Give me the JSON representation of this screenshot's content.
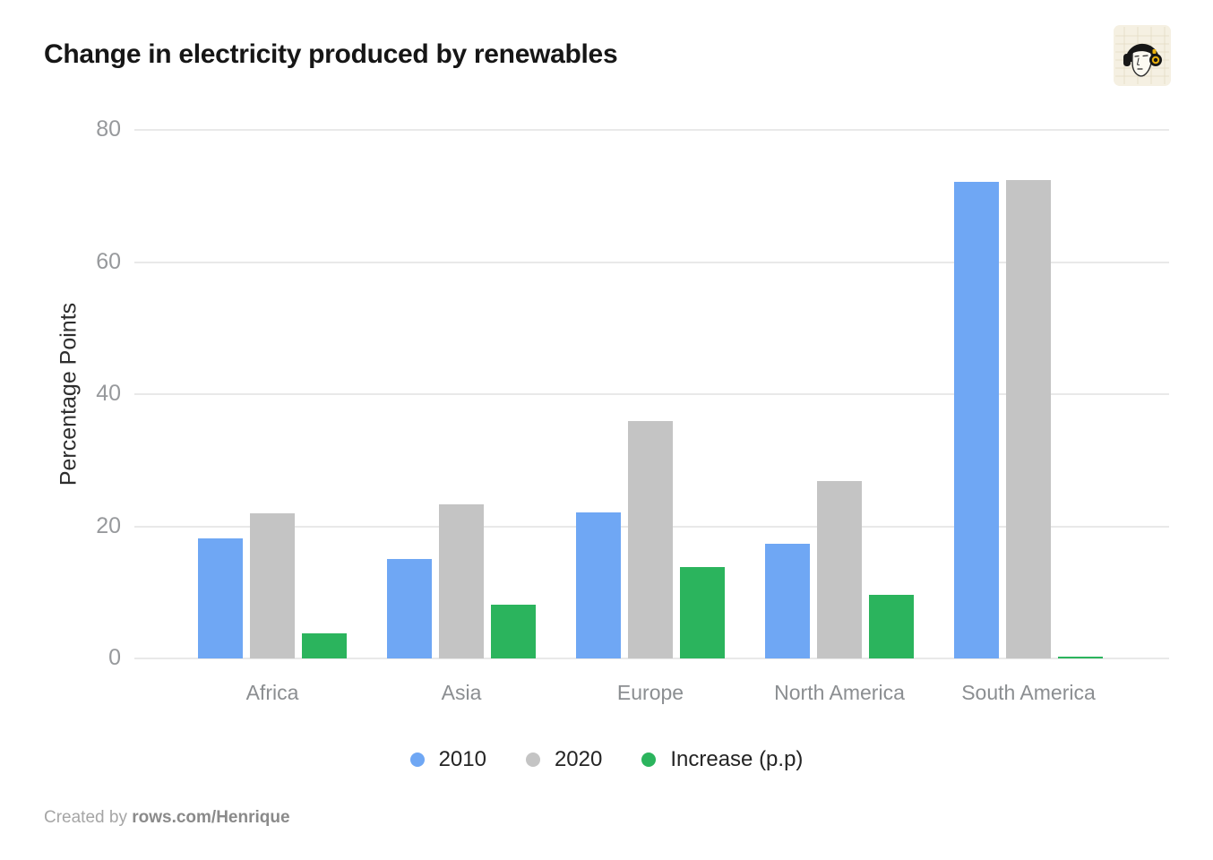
{
  "title": "Change in electricity produced by renewables",
  "logo": {
    "name": "rows-avatar-logo",
    "background": "#F5F0E2",
    "grid_color": "#E6DFC9"
  },
  "chart_data": {
    "type": "bar",
    "title": "Change in electricity produced by renewables",
    "categories": [
      "Africa",
      "Asia",
      "Europe",
      "North America",
      "South America"
    ],
    "series": [
      {
        "name": "2010",
        "color": "#6FA7F4",
        "values": [
          18.2,
          15.1,
          22.1,
          17.3,
          72.2
        ]
      },
      {
        "name": "2020",
        "color": "#C4C4C4",
        "values": [
          22.0,
          23.3,
          35.9,
          26.9,
          72.4
        ]
      },
      {
        "name": "Increase (p.p)",
        "color": "#2BB45D",
        "values": [
          3.8,
          8.2,
          13.8,
          9.6,
          0.2
        ]
      }
    ],
    "xlabel": "",
    "ylabel": "Percentage Points",
    "yticks": [
      0,
      20,
      40,
      60,
      80
    ],
    "ylim": [
      0,
      80
    ],
    "grid": true,
    "gridline_color": "#E9E9E9",
    "legend_position": "bottom"
  },
  "footer": {
    "prefix": "Created by ",
    "author": "rows.com/Henrique"
  }
}
